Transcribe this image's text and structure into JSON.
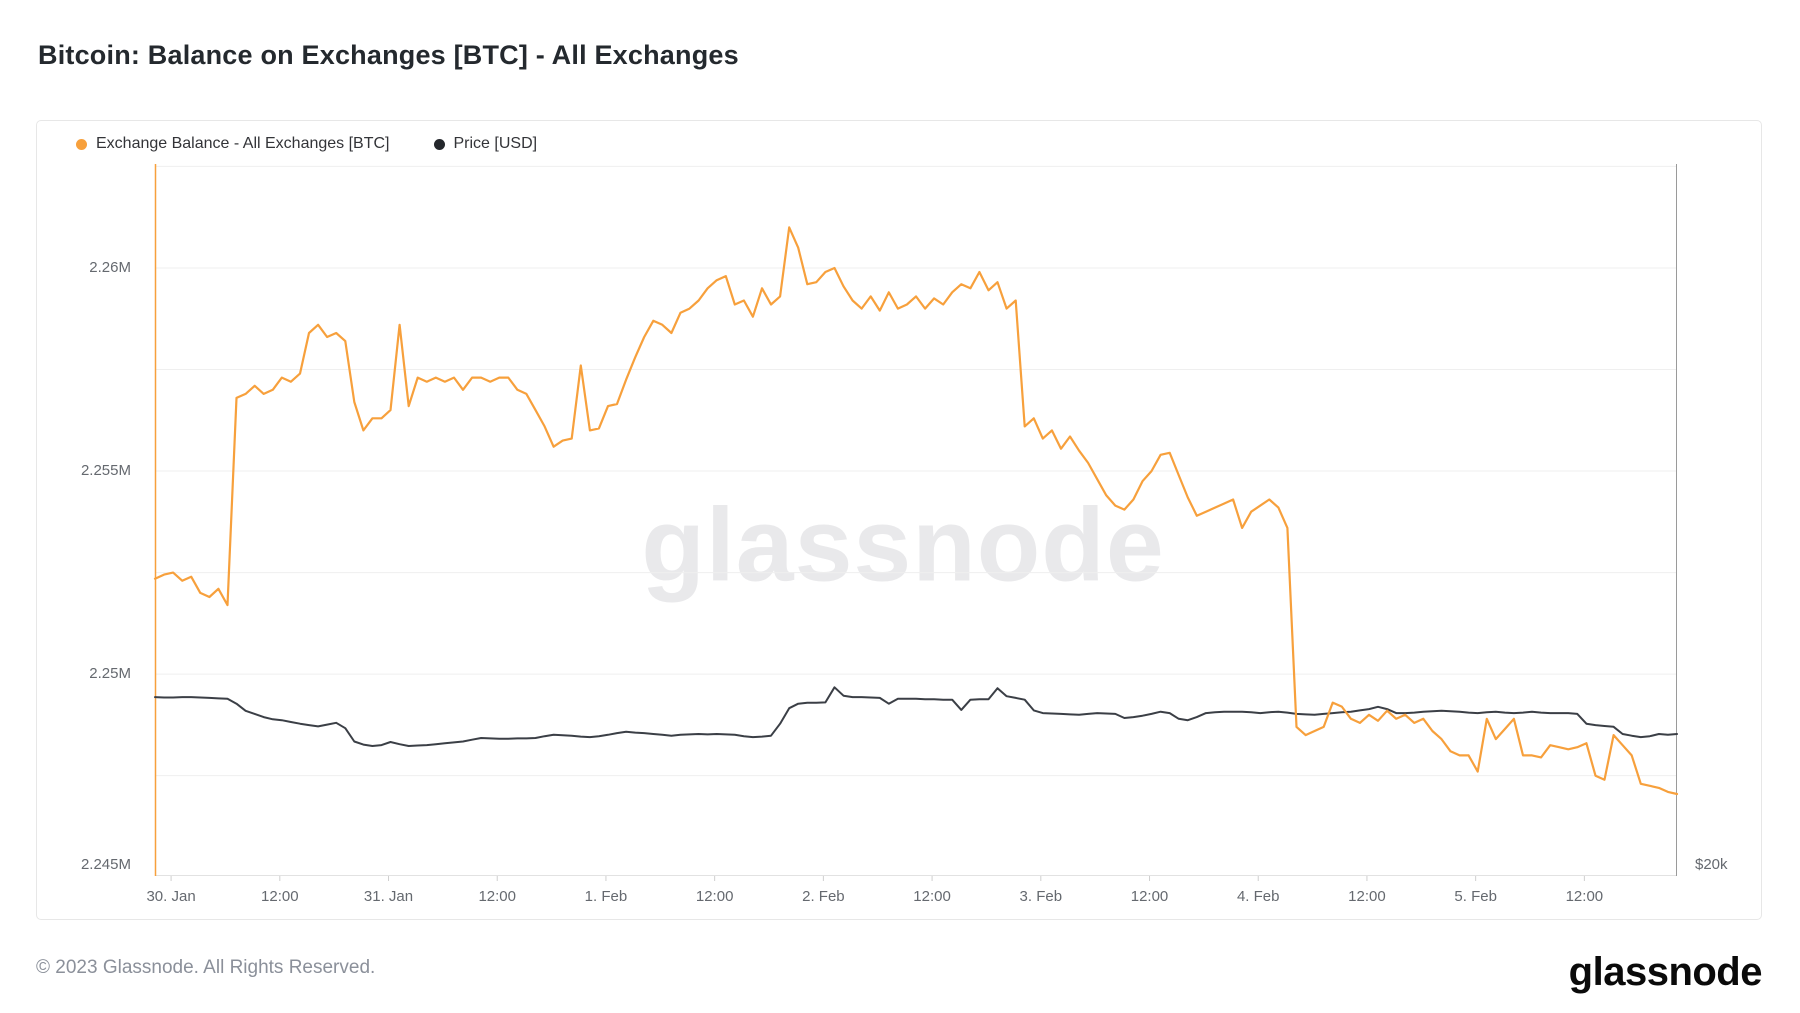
{
  "title": "Bitcoin: Balance on Exchanges [BTC] - All Exchanges",
  "watermark": "glassnode",
  "legend": {
    "balance": {
      "label": "Exchange Balance - All Exchanges [BTC]",
      "color": "#f7a03c"
    },
    "price": {
      "label": "Price [USD]",
      "color": "#24272c"
    }
  },
  "footer": {
    "copyright": "© 2023 Glassnode. All Rights Reserved.",
    "brand": "glassnode"
  },
  "colors": {
    "balance_line": "#f7a03c",
    "price_line": "#3b3f46",
    "gridline": "#efefef",
    "axis_bottom": "#e2e2e2",
    "tick_mark": "#cfcfcf",
    "right_axis_line": "#9a9a9a",
    "left_axis_line": "#f7a03c"
  },
  "chart_data": {
    "type": "line",
    "title": "Bitcoin: Balance on Exchanges [BTC] - All Exchanges",
    "time_start": "2023-01-29 22:00",
    "time_end": "2023-02-05 22:00",
    "interval_hours": 1,
    "x_axis": {
      "plot_start_days": -0.074,
      "plot_end_days": 6.926,
      "ticks": [
        {
          "d": 0.0,
          "label": "30. Jan"
        },
        {
          "d": 0.5,
          "label": "12:00"
        },
        {
          "d": 1.0,
          "label": "31. Jan"
        },
        {
          "d": 1.5,
          "label": "12:00"
        },
        {
          "d": 2.0,
          "label": "1. Feb"
        },
        {
          "d": 2.5,
          "label": "12:00"
        },
        {
          "d": 3.0,
          "label": "2. Feb"
        },
        {
          "d": 3.5,
          "label": "12:00"
        },
        {
          "d": 4.0,
          "label": "3. Feb"
        },
        {
          "d": 4.5,
          "label": "12:00"
        },
        {
          "d": 5.0,
          "label": "4. Feb"
        },
        {
          "d": 5.5,
          "label": "12:00"
        },
        {
          "d": 6.0,
          "label": "5. Feb"
        },
        {
          "d": 6.5,
          "label": "12:00"
        }
      ]
    },
    "y_axis_left": {
      "unit": "BTC",
      "top": 2262560,
      "bottom": 2245030,
      "ticks": [
        {
          "value": 2262500,
          "label": ""
        },
        {
          "value": 2260000,
          "label": "2.26M"
        },
        {
          "value": 2257500,
          "label": ""
        },
        {
          "value": 2255000,
          "label": "2.255M"
        },
        {
          "value": 2252500,
          "label": ""
        },
        {
          "value": 2250000,
          "label": "2.25M"
        },
        {
          "value": 2247500,
          "label": ""
        },
        {
          "value": 2245000,
          "label": "2.245M"
        }
      ]
    },
    "y_axis_right": {
      "unit": "USD",
      "top": 35790,
      "bottom": 19775,
      "ticks": [
        {
          "value": 20000,
          "label": "$20k"
        }
      ]
    },
    "series": [
      {
        "name": "Exchange Balance - All Exchanges [BTC]",
        "axis": "left",
        "color": "#f7a03c",
        "values": [
          2252350,
          2252450,
          2252500,
          2252300,
          2252400,
          2252000,
          2251900,
          2252100,
          2251700,
          2256800,
          2256900,
          2257100,
          2256900,
          2257000,
          2257300,
          2257200,
          2257400,
          2258400,
          2258600,
          2258300,
          2258400,
          2258200,
          2256700,
          2256000,
          2256300,
          2256300,
          2256500,
          2258600,
          2256600,
          2257300,
          2257200,
          2257300,
          2257200,
          2257300,
          2257000,
          2257300,
          2257300,
          2257200,
          2257300,
          2257300,
          2257000,
          2256900,
          2256500,
          2256100,
          2255600,
          2255750,
          2255800,
          2257600,
          2256000,
          2256050,
          2256600,
          2256650,
          2257250,
          2257800,
          2258300,
          2258700,
          2258600,
          2258400,
          2258900,
          2259000,
          2259200,
          2259500,
          2259700,
          2259800,
          2259100,
          2259200,
          2258800,
          2259500,
          2259100,
          2259300,
          2261000,
          2260500,
          2259600,
          2259650,
          2259900,
          2260000,
          2259550,
          2259200,
          2259000,
          2259300,
          2258950,
          2259400,
          2259000,
          2259100,
          2259300,
          2259000,
          2259250,
          2259100,
          2259400,
          2259600,
          2259500,
          2259900,
          2259450,
          2259650,
          2259000,
          2259200,
          2256100,
          2256300,
          2255800,
          2256000,
          2255550,
          2255850,
          2255500,
          2255200,
          2254800,
          2254400,
          2254150,
          2254050,
          2254300,
          2254750,
          2255000,
          2255400,
          2255450,
          2254900,
          2254350,
          2253900,
          2254000,
          2254100,
          2254200,
          2254300,
          2253600,
          2254000,
          2254150,
          2254300,
          2254100,
          2253600,
          2248700,
          2248500,
          2248600,
          2248700,
          2249300,
          2249200,
          2248900,
          2248800,
          2249000,
          2248850,
          2249100,
          2248900,
          2249000,
          2248800,
          2248900,
          2248600,
          2248400,
          2248100,
          2248000,
          2248000,
          2247600,
          2248900,
          2248400,
          2248650,
          2248900,
          2248000,
          2248000,
          2247950,
          2248250,
          2248200,
          2248150,
          2248200,
          2248300,
          2247500,
          2247400,
          2248500,
          2248250,
          2248000,
          2247300,
          2247250,
          2247200,
          2247100,
          2247050
        ]
      },
      {
        "name": "Price [USD]",
        "axis": "right",
        "color": "#3b3f46",
        "values": [
          23800,
          23790,
          23790,
          23800,
          23800,
          23790,
          23780,
          23770,
          23760,
          23650,
          23490,
          23420,
          23350,
          23300,
          23280,
          23240,
          23200,
          23170,
          23140,
          23180,
          23220,
          23100,
          22800,
          22730,
          22700,
          22720,
          22790,
          22740,
          22700,
          22710,
          22720,
          22740,
          22760,
          22780,
          22800,
          22840,
          22880,
          22870,
          22860,
          22860,
          22870,
          22870,
          22880,
          22920,
          22950,
          22940,
          22930,
          22910,
          22900,
          22920,
          22950,
          22990,
          23020,
          23000,
          22990,
          22970,
          22950,
          22930,
          22950,
          22960,
          22970,
          22960,
          22970,
          22960,
          22950,
          22920,
          22900,
          22910,
          22930,
          23200,
          23550,
          23650,
          23670,
          23670,
          23680,
          24020,
          23830,
          23800,
          23800,
          23790,
          23780,
          23650,
          23760,
          23760,
          23760,
          23750,
          23750,
          23740,
          23740,
          23510,
          23740,
          23750,
          23750,
          24000,
          23820,
          23780,
          23740,
          23500,
          23440,
          23430,
          23420,
          23410,
          23400,
          23420,
          23440,
          23430,
          23420,
          23330,
          23350,
          23380,
          23420,
          23470,
          23440,
          23310,
          23280,
          23350,
          23440,
          23460,
          23470,
          23470,
          23470,
          23460,
          23440,
          23460,
          23470,
          23450,
          23420,
          23410,
          23400,
          23420,
          23440,
          23460,
          23470,
          23500,
          23530,
          23580,
          23530,
          23440,
          23440,
          23450,
          23470,
          23480,
          23490,
          23480,
          23470,
          23450,
          23440,
          23460,
          23470,
          23450,
          23440,
          23450,
          23470,
          23450,
          23440,
          23440,
          23440,
          23420,
          23200,
          23170,
          23150,
          23130,
          22970,
          22930,
          22900,
          22920,
          22970,
          22950,
          22970
        ]
      }
    ]
  }
}
